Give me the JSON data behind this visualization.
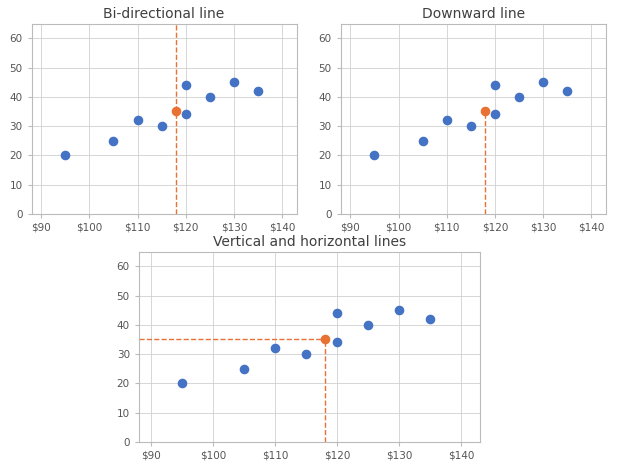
{
  "x": [
    95,
    105,
    110,
    115,
    120,
    120,
    125,
    130,
    135
  ],
  "y": [
    20,
    25,
    32,
    30,
    44,
    34,
    40,
    45,
    42
  ],
  "highlight_x": 118,
  "highlight_y": 35,
  "blue_color": "#4472C4",
  "orange_color": "#E97132",
  "line_color": "#E97132",
  "titles": [
    "Bi-directional line",
    "Downward line",
    "Vertical and horizontal lines"
  ],
  "xlim": [
    88,
    143
  ],
  "ylim": [
    0,
    65
  ],
  "xticks": [
    90,
    100,
    110,
    120,
    130,
    140
  ],
  "yticks": [
    0,
    10,
    20,
    30,
    40,
    50,
    60
  ],
  "dot_size": 35,
  "grid_color": "#D0D0D0",
  "plot_bg": "#FFFFFF",
  "fig_bg": "#FFFFFF",
  "spine_color": "#BBBBBB",
  "title_color": "#404040",
  "tick_color": "#555555",
  "title_fontsize": 10,
  "tick_fontsize": 7.5
}
